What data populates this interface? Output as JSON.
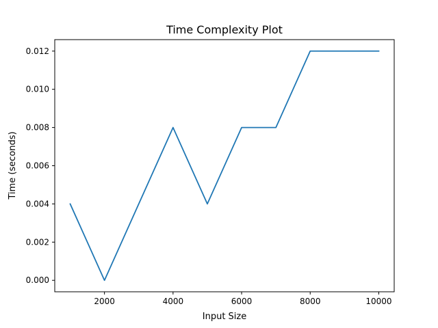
{
  "chart_data": {
    "type": "line",
    "title": "Time Complexity Plot",
    "xlabel": "Input Size",
    "ylabel": "Time (seconds)",
    "xlim": [
      550,
      10450
    ],
    "ylim": [
      -0.0006,
      0.0126
    ],
    "xticks": [
      2000,
      4000,
      6000,
      8000,
      10000
    ],
    "xtick_labels": [
      "2000",
      "4000",
      "6000",
      "8000",
      "10000"
    ],
    "yticks": [
      0.0,
      0.002,
      0.004,
      0.006,
      0.008,
      0.01,
      0.012
    ],
    "ytick_labels": [
      "0.000",
      "0.002",
      "0.004",
      "0.006",
      "0.008",
      "0.010",
      "0.012"
    ],
    "grid": false,
    "series": [
      {
        "color": "#1f77b4",
        "x": [
          1000,
          2000,
          3000,
          4000,
          5000,
          6000,
          7000,
          8000,
          9000,
          10000
        ],
        "y": [
          0.004,
          0.0,
          0.004,
          0.008,
          0.004,
          0.008,
          0.008,
          0.012,
          0.012,
          0.012
        ]
      }
    ]
  }
}
